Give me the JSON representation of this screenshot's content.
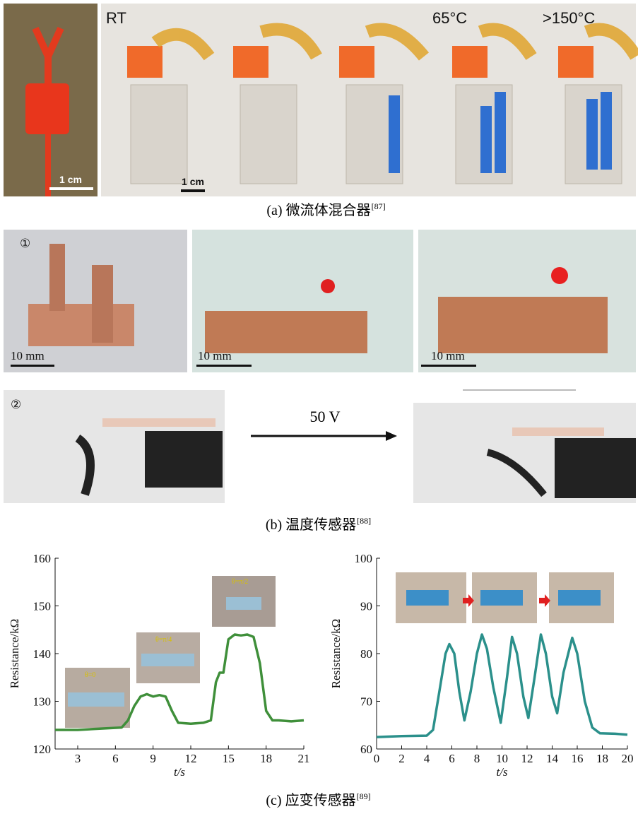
{
  "panel_a": {
    "photo_labels": [
      "RT",
      "65°C",
      ">150°C"
    ],
    "scale_bars": [
      "1 cm",
      "1 cm"
    ],
    "caption": "(a) 微流体混合器",
    "ref": "[87]"
  },
  "panel_b": {
    "markers": [
      "①",
      "②"
    ],
    "scale_bars": [
      "10 mm",
      "10 mm",
      "10 mm"
    ],
    "arrow_label": "50 V",
    "caption": "(b) 温度传感器",
    "ref": "[88]"
  },
  "panel_c": {
    "inset_labels": [
      "θ=0",
      "θ=π/4",
      "θ=π/2"
    ],
    "caption": "(c) 应变传感器",
    "ref": "[89]"
  },
  "chart_data": [
    {
      "type": "line",
      "x_label": "t/s",
      "y_label": "Resistance/kΩ",
      "xlim": [
        1.2,
        21
      ],
      "xticks": [
        3,
        6,
        9,
        12,
        15,
        18,
        21
      ],
      "ylim": [
        120,
        160
      ],
      "yticks": [
        120,
        130,
        140,
        150,
        160
      ],
      "series": [
        {
          "color": "#3f8f3a",
          "x": [
            1.2,
            3,
            5,
            6.5,
            7,
            7.5,
            8,
            8.5,
            9,
            9.5,
            10,
            10.5,
            11,
            12,
            13,
            13.6,
            14,
            14.3,
            14.6,
            15,
            15.5,
            16,
            16.5,
            17,
            17.5,
            18,
            18.5,
            19,
            20,
            21
          ],
          "values": [
            124,
            124,
            124.3,
            124.5,
            126,
            129,
            131,
            131.5,
            131,
            131.3,
            131,
            128,
            125.5,
            125.3,
            125.5,
            126,
            134,
            136,
            136,
            143,
            144,
            143.8,
            144,
            143.5,
            138,
            128,
            126,
            126,
            125.8,
            126
          ]
        }
      ]
    },
    {
      "type": "line",
      "x_label": "t/s",
      "y_label": "Resistance/kΩ",
      "xlim": [
        0,
        20
      ],
      "xticks": [
        0,
        2,
        4,
        6,
        8,
        10,
        12,
        14,
        16,
        18,
        20
      ],
      "ylim": [
        60,
        100
      ],
      "yticks": [
        60,
        70,
        80,
        90,
        100
      ],
      "series": [
        {
          "color": "#2b908b",
          "x": [
            0,
            2,
            4,
            4.5,
            5,
            5.5,
            5.8,
            6.2,
            6.6,
            7,
            7.5,
            8,
            8.4,
            8.8,
            9.3,
            9.9,
            10.4,
            10.8,
            11.2,
            11.7,
            12.1,
            12.6,
            13.1,
            13.5,
            14,
            14.4,
            14.9,
            15.6,
            16,
            16.6,
            17.2,
            17.8,
            19,
            20
          ],
          "values": [
            62.5,
            62.7,
            62.8,
            64,
            72,
            80,
            82,
            80,
            72,
            66,
            72,
            80,
            84,
            81,
            73,
            65.5,
            75,
            83.5,
            80,
            71,
            66.5,
            75,
            84,
            80,
            71,
            67.5,
            76,
            83.3,
            80,
            70,
            64.5,
            63.3,
            63.2,
            63
          ]
        }
      ]
    }
  ]
}
